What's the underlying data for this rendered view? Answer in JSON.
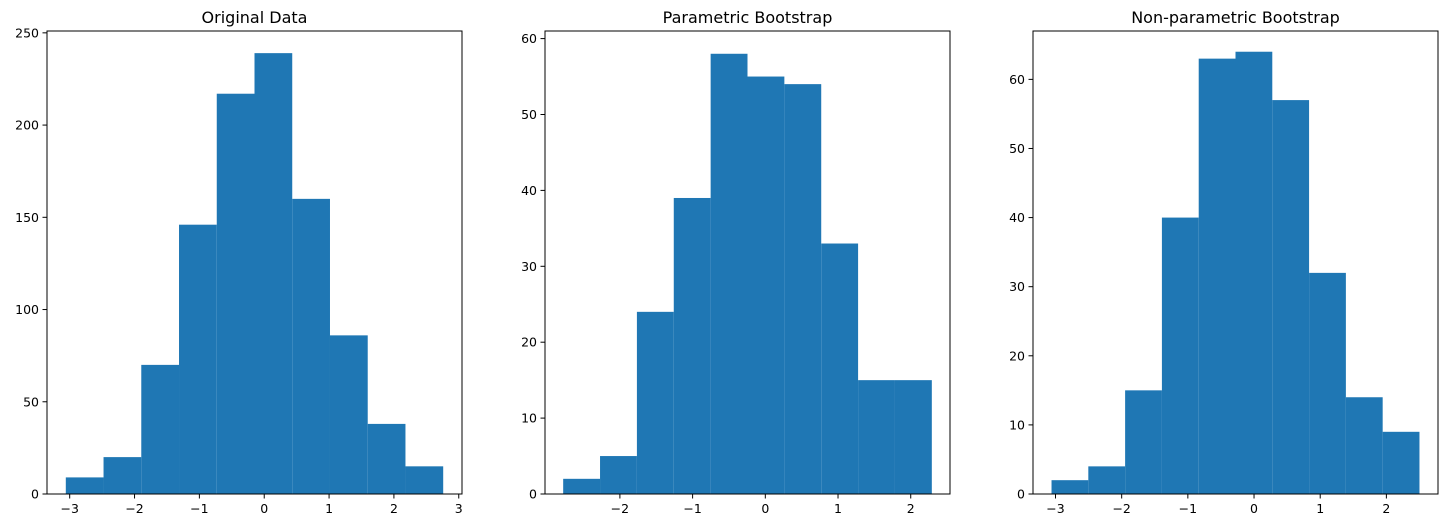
{
  "chart_data": [
    {
      "type": "bar",
      "title": "Original Data",
      "xlabel": "",
      "ylabel": "",
      "bar_color": "#1f77b4",
      "bin_edges": [
        -3.06,
        -2.478,
        -1.896,
        -1.314,
        -0.732,
        -0.15,
        0.432,
        1.014,
        1.596,
        2.178,
        2.76
      ],
      "values": [
        9,
        20,
        70,
        146,
        217,
        239,
        160,
        86,
        38,
        15
      ],
      "xlim": [
        -3.35,
        3.05
      ],
      "ylim": [
        0,
        251
      ],
      "xticks": [
        -3,
        -2,
        -1,
        0,
        1,
        2,
        3
      ],
      "xtick_labels": [
        "−3",
        "−2",
        "−1",
        "0",
        "1",
        "2",
        "3"
      ],
      "yticks": [
        0,
        50,
        100,
        150,
        200,
        250
      ],
      "ytick_labels": [
        "0",
        "50",
        "100",
        "150",
        "200",
        "250"
      ],
      "grid": false,
      "legend": null
    },
    {
      "type": "bar",
      "title": "Parametric Bootstrap",
      "xlabel": "",
      "ylabel": "",
      "bar_color": "#1f77b4",
      "bin_edges": [
        -2.78,
        -2.273,
        -1.766,
        -1.259,
        -0.752,
        -0.245,
        0.262,
        0.769,
        1.276,
        1.783,
        2.29
      ],
      "values": [
        2,
        5,
        24,
        39,
        58,
        55,
        54,
        33,
        15,
        15
      ],
      "xlim": [
        -3.03,
        2.54
      ],
      "ylim": [
        0,
        61
      ],
      "xticks": [
        -2,
        -1,
        0,
        1,
        2
      ],
      "xtick_labels": [
        "−2",
        "−1",
        "0",
        "1",
        "2"
      ],
      "yticks": [
        0,
        10,
        20,
        30,
        40,
        50,
        60
      ],
      "ytick_labels": [
        "0",
        "10",
        "20",
        "30",
        "40",
        "50",
        "60"
      ],
      "grid": false,
      "legend": null
    },
    {
      "type": "bar",
      "title": "Non-parametric Bootstrap",
      "xlabel": "",
      "ylabel": "",
      "bar_color": "#1f77b4",
      "bin_edges": [
        -3.06,
        -2.504,
        -1.948,
        -1.392,
        -0.836,
        -0.28,
        0.276,
        0.832,
        1.388,
        1.944,
        2.5
      ],
      "values": [
        2,
        4,
        15,
        40,
        63,
        64,
        57,
        32,
        14,
        9
      ],
      "xlim": [
        -3.34,
        2.78
      ],
      "ylim": [
        0,
        67
      ],
      "xticks": [
        -3,
        -2,
        -1,
        0,
        1,
        2
      ],
      "xtick_labels": [
        "−3",
        "−2",
        "−1",
        "0",
        "1",
        "2"
      ],
      "yticks": [
        0,
        10,
        20,
        30,
        40,
        50,
        60
      ],
      "ytick_labels": [
        "0",
        "10",
        "20",
        "30",
        "40",
        "50",
        "60"
      ],
      "grid": false,
      "legend": null
    }
  ]
}
